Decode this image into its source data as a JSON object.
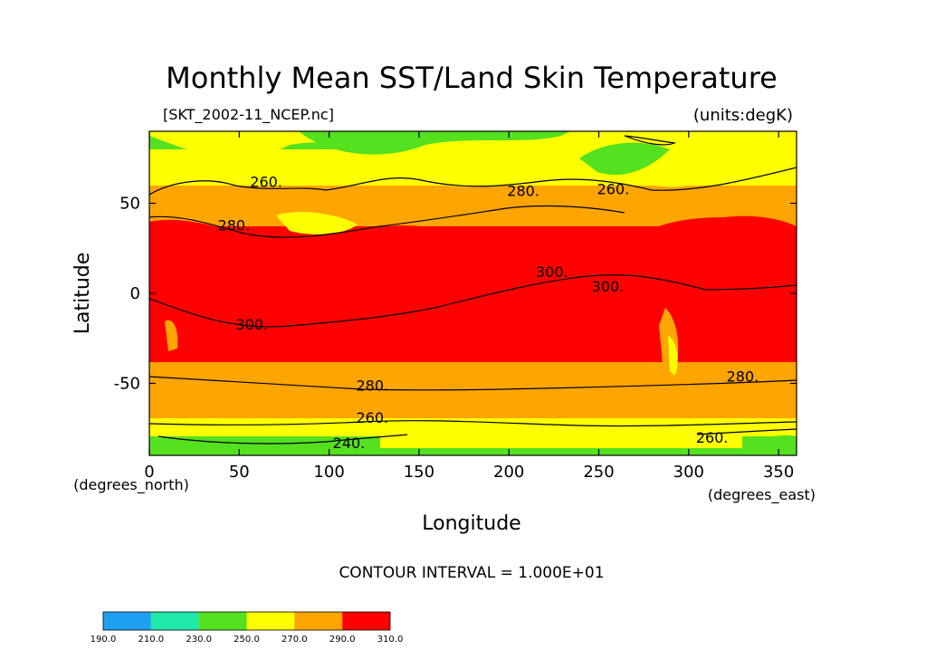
{
  "chart_data": {
    "type": "heatmap",
    "title": "Monthly Mean SST/Land Skin Temperature",
    "source_label": "[SKT_2002-11_NCEP.nc]",
    "units_label": "(units:degK)",
    "xlabel": "Longitude",
    "ylabel": "Latitude",
    "x_units": "(degrees_east)",
    "y_units": "(degrees_north)",
    "xlim": [
      0,
      360
    ],
    "ylim": [
      -90,
      90
    ],
    "x_ticks": [
      0,
      50,
      100,
      150,
      200,
      250,
      300,
      350
    ],
    "y_ticks": [
      -50,
      0,
      50
    ],
    "contour_interval": "CONTOUR INTERVAL = 1.000E+01",
    "contour_labels": [
      {
        "text": "260.",
        "lon": 65,
        "lat": 62
      },
      {
        "text": "280.",
        "lon": 47,
        "lat": 38
      },
      {
        "text": "280.",
        "lon": 208,
        "lat": 57
      },
      {
        "text": "260.",
        "lon": 258,
        "lat": 58
      },
      {
        "text": "300.",
        "lon": 224,
        "lat": 12
      },
      {
        "text": "300.",
        "lon": 255,
        "lat": 4
      },
      {
        "text": "300.",
        "lon": 57,
        "lat": -17
      },
      {
        "text": "280.",
        "lon": 124,
        "lat": -51
      },
      {
        "text": "280.",
        "lon": 330,
        "lat": -46
      },
      {
        "text": "260.",
        "lon": 124,
        "lat": -69
      },
      {
        "text": "240.",
        "lon": 111,
        "lat": -83
      },
      {
        "text": "260.",
        "lon": 313,
        "lat": -80
      }
    ],
    "colorbar": {
      "ticks": [
        "190.0",
        "210.0",
        "230.0",
        "250.0",
        "270.0",
        "290.0",
        "310.0"
      ],
      "colors": [
        "#1ea0f0",
        "#20e8a8",
        "#55e020",
        "#ffff00",
        "#ffa500",
        "#ff0000"
      ]
    },
    "field_description": "Global surface skin temperature, November 2002"
  }
}
